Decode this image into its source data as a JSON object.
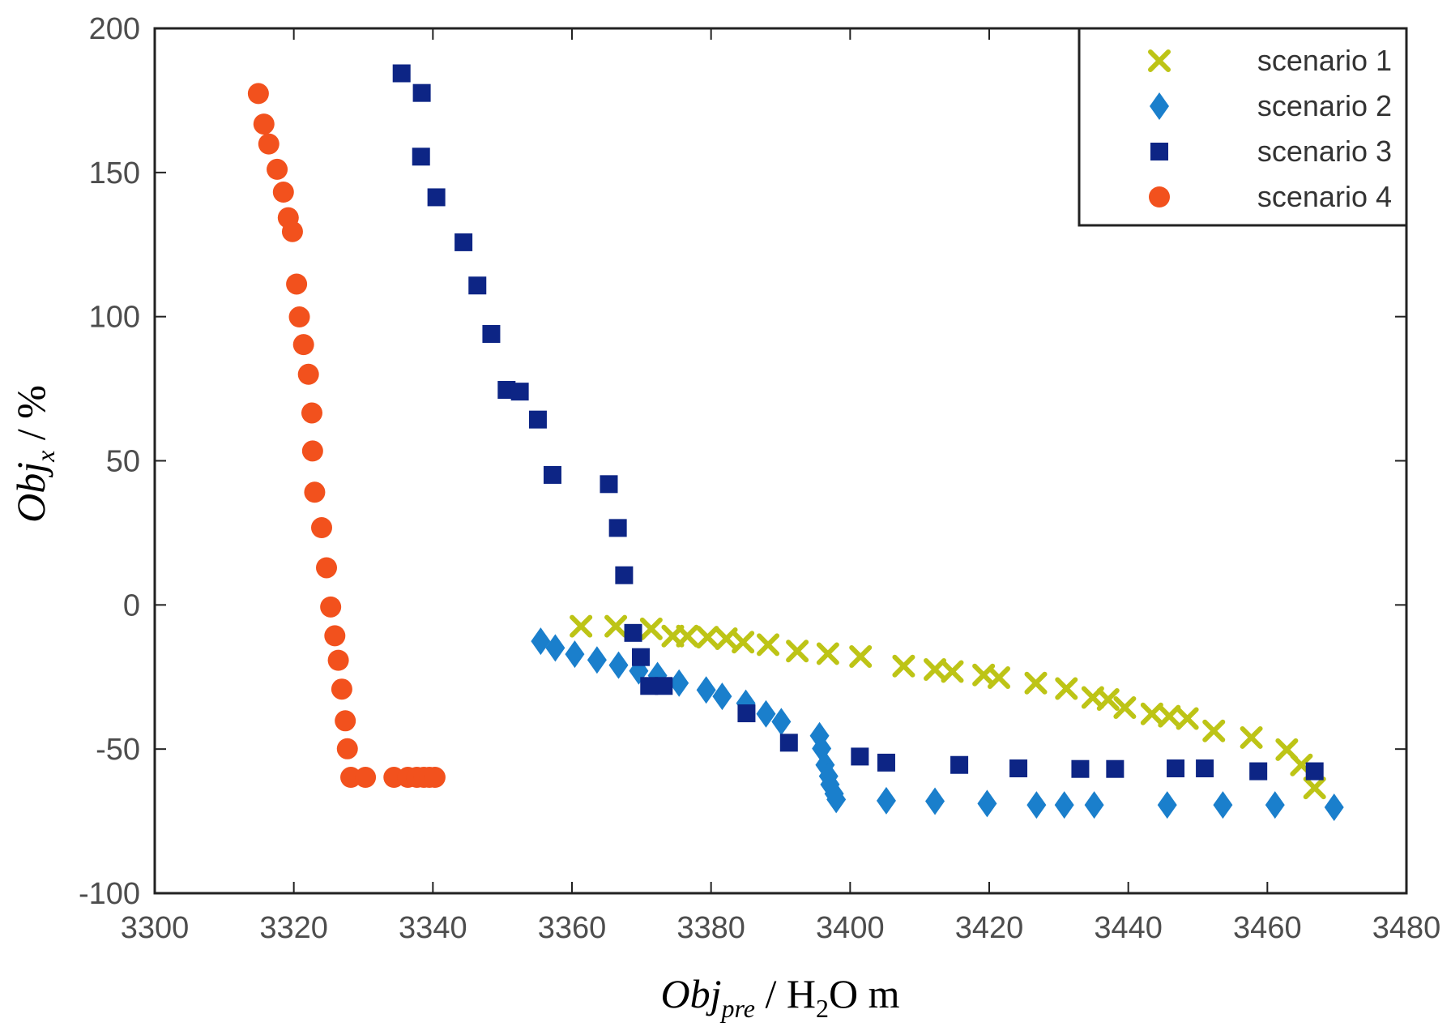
{
  "chart_data": {
    "type": "scatter",
    "xlabel": {
      "main": "Obj",
      "sub": "pre",
      "unit_prefix": " / H",
      "unit_sub": "2",
      "unit_suffix": "O m"
    },
    "ylabel": {
      "main": "Obj",
      "sub": "x",
      "unit": " / %"
    },
    "xlim": [
      3300,
      3480
    ],
    "ylim": [
      -100,
      200
    ],
    "xticks": [
      "3300",
      "3320",
      "3340",
      "3360",
      "3380",
      "3400",
      "3420",
      "3440",
      "3460",
      "3480"
    ],
    "yticks": [
      "-100",
      "-50",
      "0",
      "50",
      "100",
      "150",
      "200"
    ],
    "grid": false,
    "legend_position": "top-right",
    "series": [
      {
        "name": "scenario 1",
        "marker": "x",
        "color": "#bdc416",
        "points": [
          [
            3361.3,
            -7.4
          ],
          [
            3366.3,
            -7.4
          ],
          [
            3371.4,
            -8.3
          ],
          [
            3374.5,
            -10.8
          ],
          [
            3376.6,
            -10.8
          ],
          [
            3379.5,
            -11.2
          ],
          [
            3382.2,
            -11.7
          ],
          [
            3384.6,
            -12.9
          ],
          [
            3388.2,
            -13.8
          ],
          [
            3392.4,
            -16.0
          ],
          [
            3396.8,
            -16.9
          ],
          [
            3401.5,
            -17.9
          ],
          [
            3407.7,
            -21.2
          ],
          [
            3412.2,
            -22.4
          ],
          [
            3414.7,
            -23.1
          ],
          [
            3419.2,
            -24.3
          ],
          [
            3421.4,
            -25.2
          ],
          [
            3426.7,
            -27.1
          ],
          [
            3431.1,
            -29.0
          ],
          [
            3434.9,
            -32.1
          ],
          [
            3437.1,
            -32.8
          ],
          [
            3439.5,
            -35.6
          ],
          [
            3443.4,
            -37.8
          ],
          [
            3445.9,
            -38.6
          ],
          [
            3448.5,
            -39.4
          ],
          [
            3452.3,
            -43.7
          ],
          [
            3457.7,
            -46.0
          ],
          [
            3462.8,
            -50.2
          ],
          [
            3464.9,
            -55.5
          ],
          [
            3466.8,
            -63.5
          ]
        ]
      },
      {
        "name": "scenario 2",
        "marker": "diamond",
        "color": "#1a7fcc",
        "points": [
          [
            3355.5,
            -12.6
          ],
          [
            3357.6,
            -14.9
          ],
          [
            3360.4,
            -17.1
          ],
          [
            3363.6,
            -19.1
          ],
          [
            3366.7,
            -20.9
          ],
          [
            3369.6,
            -22.9
          ],
          [
            3372.3,
            -24.5
          ],
          [
            3375.4,
            -27.1
          ],
          [
            3379.3,
            -29.5
          ],
          [
            3381.6,
            -31.7
          ],
          [
            3385.0,
            -34.1
          ],
          [
            3387.9,
            -37.8
          ],
          [
            3390.1,
            -40.5
          ],
          [
            3395.6,
            -45.4
          ],
          [
            3395.9,
            -49.8
          ],
          [
            3396.4,
            -55.5
          ],
          [
            3396.9,
            -59.4
          ],
          [
            3397.1,
            -62.3
          ],
          [
            3397.7,
            -65.5
          ],
          [
            3398.0,
            -67.5
          ],
          [
            3405.2,
            -67.9
          ],
          [
            3412.2,
            -68.1
          ],
          [
            3419.7,
            -68.9
          ],
          [
            3426.8,
            -69.4
          ],
          [
            3430.8,
            -69.4
          ],
          [
            3435.1,
            -69.4
          ],
          [
            3445.6,
            -69.4
          ],
          [
            3453.6,
            -69.4
          ],
          [
            3461.1,
            -69.4
          ],
          [
            3469.6,
            -70.2
          ]
        ]
      },
      {
        "name": "scenario 3",
        "marker": "square",
        "color": "#0d2585",
        "points": [
          [
            3335.5,
            184.4
          ],
          [
            3338.4,
            177.6
          ],
          [
            3338.3,
            155.5
          ],
          [
            3340.5,
            141.4
          ],
          [
            3344.4,
            125.8
          ],
          [
            3346.4,
            110.8
          ],
          [
            3348.4,
            94.0
          ],
          [
            3350.6,
            74.6
          ],
          [
            3352.5,
            74.0
          ],
          [
            3355.1,
            64.3
          ],
          [
            3357.2,
            45.1
          ],
          [
            3365.3,
            41.9
          ],
          [
            3366.6,
            26.7
          ],
          [
            3367.5,
            10.3
          ],
          [
            3368.8,
            -9.7
          ],
          [
            3369.9,
            -18.1
          ],
          [
            3371.1,
            -28.1
          ],
          [
            3373.2,
            -28.1
          ],
          [
            3385.1,
            -37.6
          ],
          [
            3391.2,
            -47.8
          ],
          [
            3401.4,
            -52.6
          ],
          [
            3405.2,
            -54.7
          ],
          [
            3415.7,
            -55.5
          ],
          [
            3424.2,
            -56.7
          ],
          [
            3433.1,
            -56.9
          ],
          [
            3438.1,
            -56.9
          ],
          [
            3446.8,
            -56.7
          ],
          [
            3451.0,
            -56.7
          ],
          [
            3458.7,
            -57.7
          ],
          [
            3466.8,
            -57.7
          ]
        ]
      },
      {
        "name": "scenario 4",
        "marker": "circle",
        "color": "#f2511d",
        "points": [
          [
            3314.9,
            177.4
          ],
          [
            3315.7,
            166.8
          ],
          [
            3316.4,
            159.9
          ],
          [
            3317.6,
            151.1
          ],
          [
            3318.5,
            143.2
          ],
          [
            3319.2,
            134.3
          ],
          [
            3319.8,
            129.5
          ],
          [
            3320.4,
            111.3
          ],
          [
            3320.8,
            99.9
          ],
          [
            3321.4,
            90.3
          ],
          [
            3322.1,
            80.0
          ],
          [
            3322.6,
            66.6
          ],
          [
            3322.7,
            53.4
          ],
          [
            3323.0,
            39.1
          ],
          [
            3324.0,
            26.8
          ],
          [
            3324.7,
            12.9
          ],
          [
            3325.3,
            -0.7
          ],
          [
            3325.9,
            -10.7
          ],
          [
            3326.4,
            -19.2
          ],
          [
            3326.9,
            -29.2
          ],
          [
            3327.4,
            -40.2
          ],
          [
            3327.7,
            -49.9
          ],
          [
            3328.2,
            -59.8
          ],
          [
            3330.3,
            -59.8
          ],
          [
            3334.4,
            -59.8
          ],
          [
            3336.4,
            -59.8
          ],
          [
            3337.7,
            -59.8
          ],
          [
            3338.7,
            -59.8
          ],
          [
            3339.5,
            -59.8
          ],
          [
            3340.3,
            -59.8
          ]
        ]
      }
    ]
  }
}
